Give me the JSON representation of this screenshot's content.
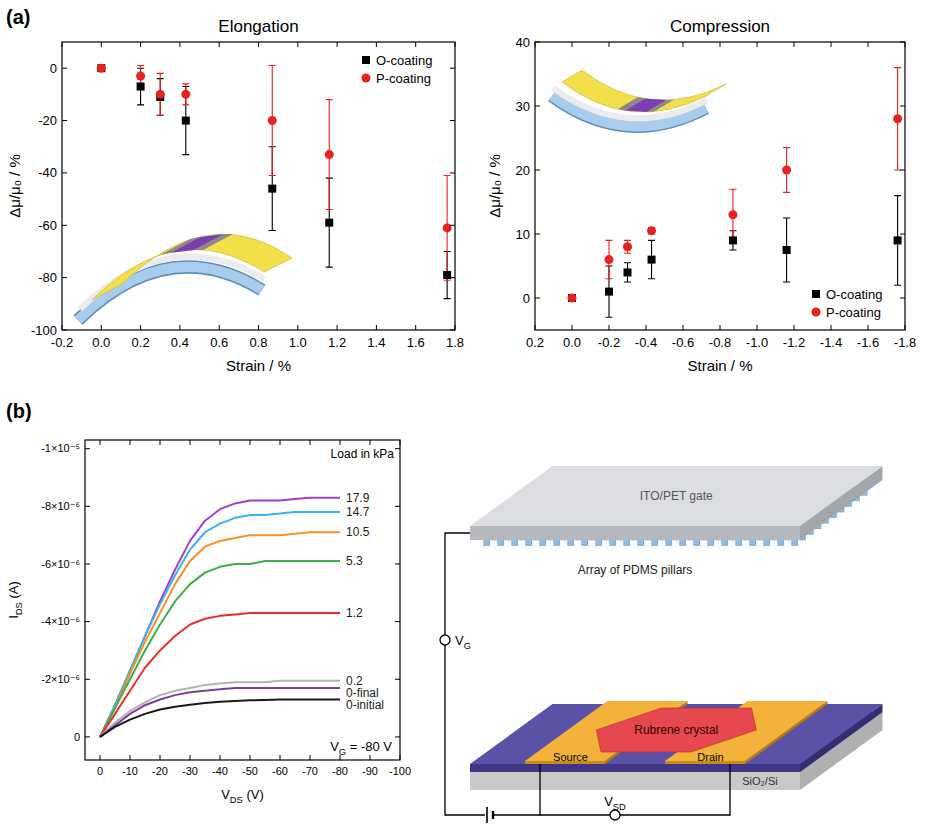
{
  "panel_labels": [
    "(a)",
    "(b)"
  ],
  "chart_data": [
    {
      "type": "scatter",
      "title": "Elongation",
      "x_label": "Strain / %",
      "y_label": "Δμ/μ₀ / %",
      "x": [
        0,
        0.2,
        0.3,
        0.43,
        0.87,
        1.16,
        1.76
      ],
      "series": [
        {
          "name": "O-coating",
          "color": "#000000",
          "marker": "square",
          "values": [
            0,
            -7,
            -11,
            -20,
            -46,
            -59,
            -79
          ],
          "errors": [
            0,
            7,
            7,
            13,
            16,
            17,
            9
          ]
        },
        {
          "name": "P-coating",
          "color": "#e8221c",
          "marker": "circle",
          "values": [
            0,
            -3,
            -10,
            -10,
            -20,
            -33,
            -61
          ],
          "errors": [
            0,
            4,
            8,
            4,
            21,
            21,
            20
          ]
        }
      ],
      "xlim": [
        -0.2,
        1.8
      ],
      "xticks": [
        -0.2,
        {
          "value": 0,
          "label": "0.0"
        },
        0.2,
        0.4,
        0.6,
        0.8,
        {
          "value": 1,
          "label": "1.0"
        },
        1.2,
        1.4,
        1.6,
        1.8
      ],
      "ylim": [
        -100,
        10
      ],
      "yticks": [
        -100,
        -80,
        -60,
        -40,
        -20,
        0
      ],
      "legend": "upper right"
    },
    {
      "type": "scatter",
      "title": "Compression",
      "x_label": "Strain / %",
      "y_label": "Δμ/μ₀ / %",
      "x": [
        0,
        -0.2,
        -0.3,
        -0.43,
        -0.87,
        -1.16,
        -1.76
      ],
      "series": [
        {
          "name": "O-coating",
          "color": "#000000",
          "marker": "square",
          "values": [
            0,
            1,
            4,
            6,
            9,
            7.5,
            9
          ],
          "errors": [
            0,
            4,
            1.5,
            3,
            1.5,
            5,
            7
          ]
        },
        {
          "name": "P-coating",
          "color": "#e8221c",
          "marker": "circle",
          "values": [
            0,
            6,
            8,
            10.5,
            13,
            20,
            28
          ],
          "errors": [
            0,
            3,
            1,
            0.5,
            4,
            3.5,
            8
          ]
        }
      ],
      "xlim": [
        0.2,
        -1.8
      ],
      "xticks": [
        0.2,
        {
          "value": 0,
          "label": "0.0"
        },
        -0.2,
        -0.4,
        -0.6,
        -0.8,
        {
          "value": -1,
          "label": "-1.0"
        },
        -1.2,
        -1.4,
        -1.6,
        -1.8
      ],
      "ylim": [
        -5,
        40
      ],
      "yticks": [
        0,
        10,
        20,
        30,
        40
      ],
      "legend": "lower right"
    },
    {
      "type": "line",
      "x_label": [
        "V",
        {
          "sub": "DS"
        },
        " (V)"
      ],
      "y_label": [
        "I",
        {
          "sub": "DS"
        },
        " (A)"
      ],
      "annotations": [
        "Load in kPa",
        [
          "V",
          {
            "sub": "G"
          },
          " = -80 V"
        ]
      ],
      "x": [
        0,
        -5,
        -10,
        -15,
        -20,
        -25,
        -30,
        -35,
        -40,
        -45,
        -50,
        -55,
        -60,
        -65,
        -70,
        -75,
        -80
      ],
      "series": [
        {
          "name": "17.9",
          "color": "#a33ec9",
          "values": [
            0,
            -1.1e-06,
            -2.3e-06,
            -3.5e-06,
            -4.7e-06,
            -5.8e-06,
            -6.8e-06,
            -7.5e-06,
            -7.9e-06,
            -8.1e-06,
            -8.2e-06,
            -8.2e-06,
            -8.2e-06,
            -8.25e-06,
            -8.3e-06,
            -8.3e-06,
            -8.3e-06
          ]
        },
        {
          "name": "14.7",
          "color": "#3ab4e8",
          "values": [
            0,
            -1.1e-06,
            -2.3e-06,
            -3.5e-06,
            -4.6e-06,
            -5.6e-06,
            -6.5e-06,
            -7.1e-06,
            -7.4e-06,
            -7.6e-06,
            -7.7e-06,
            -7.7e-06,
            -7.75e-06,
            -7.8e-06,
            -7.8e-06,
            -7.8e-06,
            -7.8e-06
          ]
        },
        {
          "name": "10.5",
          "color": "#f39221",
          "values": [
            0,
            -1e-06,
            -2.2e-06,
            -3.3e-06,
            -4.3e-06,
            -5.3e-06,
            -6.1e-06,
            -6.6e-06,
            -6.8e-06,
            -6.9e-06,
            -7e-06,
            -7e-06,
            -7e-06,
            -7.05e-06,
            -7.1e-06,
            -7.1e-06,
            -7.1e-06
          ]
        },
        {
          "name": "5.3",
          "color": "#3fae49",
          "values": [
            0,
            -1e-06,
            -2e-06,
            -3e-06,
            -3.9e-06,
            -4.7e-06,
            -5.3e-06,
            -5.7e-06,
            -5.9e-06,
            -6e-06,
            -6e-06,
            -6.1e-06,
            -6.1e-06,
            -6.1e-06,
            -6.1e-06,
            -6.1e-06,
            -6.1e-06
          ]
        },
        {
          "name": "1.2",
          "color": "#e8302a",
          "values": [
            0,
            -8e-07,
            -1.6e-06,
            -2.4e-06,
            -3e-06,
            -3.5e-06,
            -3.9e-06,
            -4.1e-06,
            -4.2e-06,
            -4.25e-06,
            -4.3e-06,
            -4.3e-06,
            -4.3e-06,
            -4.3e-06,
            -4.3e-06,
            -4.3e-06,
            -4.3e-06
          ]
        },
        {
          "name": "0.2",
          "color": "#b4b4b4",
          "values": [
            0,
            -5e-07,
            -9e-07,
            -1.2e-06,
            -1.45e-06,
            -1.6e-06,
            -1.7e-06,
            -1.8e-06,
            -1.85e-06,
            -1.9e-06,
            -1.9e-06,
            -1.9e-06,
            -1.95e-06,
            -1.95e-06,
            -1.95e-06,
            -1.95e-06,
            -1.95e-06
          ]
        },
        {
          "name": "0-final",
          "color": "#7b3fa0",
          "values": [
            0,
            -4e-07,
            -8e-07,
            -1.1e-06,
            -1.3e-06,
            -1.45e-06,
            -1.55e-06,
            -1.6e-06,
            -1.65e-06,
            -1.7e-06,
            -1.7e-06,
            -1.7e-06,
            -1.7e-06,
            -1.7e-06,
            -1.7e-06,
            -1.7e-06,
            -1.7e-06
          ]
        },
        {
          "name": "0-initial",
          "color": "#1a1a1a",
          "values": [
            0,
            -3.5e-07,
            -6e-07,
            -8e-07,
            -9.5e-07,
            -1.05e-06,
            -1.12e-06,
            -1.18e-06,
            -1.22e-06,
            -1.25e-06,
            -1.27e-06,
            -1.28e-06,
            -1.3e-06,
            -1.3e-06,
            -1.3e-06,
            -1.3e-06,
            -1.3e-06
          ]
        }
      ],
      "xlim": [
        5,
        -100
      ],
      "xticks": [
        0,
        -10,
        -20,
        -30,
        -40,
        -50,
        -60,
        -70,
        -80,
        -90,
        -100
      ],
      "ylim": [
        8e-07,
        -1.03e-05
      ],
      "yticks": [
        0,
        {
          "value": -2e-06,
          "label": "-2×10⁻⁶"
        },
        {
          "value": -4e-06,
          "label": "-4×10⁻⁶"
        },
        {
          "value": -6e-06,
          "label": "-6×10⁻⁶"
        },
        {
          "value": -8e-06,
          "label": "-8×10⁻⁶"
        },
        {
          "value": -1e-05,
          "label": "-1×10⁻⁵"
        }
      ]
    }
  ],
  "diagram": {
    "gate": "ITO/PET gate",
    "pillars": "Array of PDMS pillars",
    "crystal": "Rubrene crystal",
    "source": "Source",
    "drain": "Drain",
    "substrate": "SiO₂/Si",
    "vg": [
      "V",
      {
        "sub": "G"
      }
    ],
    "vsd": [
      "V",
      {
        "sub": "SD"
      }
    ]
  }
}
